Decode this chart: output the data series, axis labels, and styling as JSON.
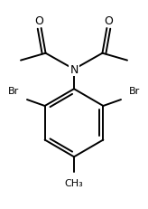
{
  "background_color": "#ffffff",
  "line_color": "#000000",
  "lw": 1.4,
  "figsize": [
    1.64,
    2.32
  ],
  "dpi": 100,
  "xlim": [
    0,
    164
  ],
  "ylim": [
    0,
    232
  ]
}
